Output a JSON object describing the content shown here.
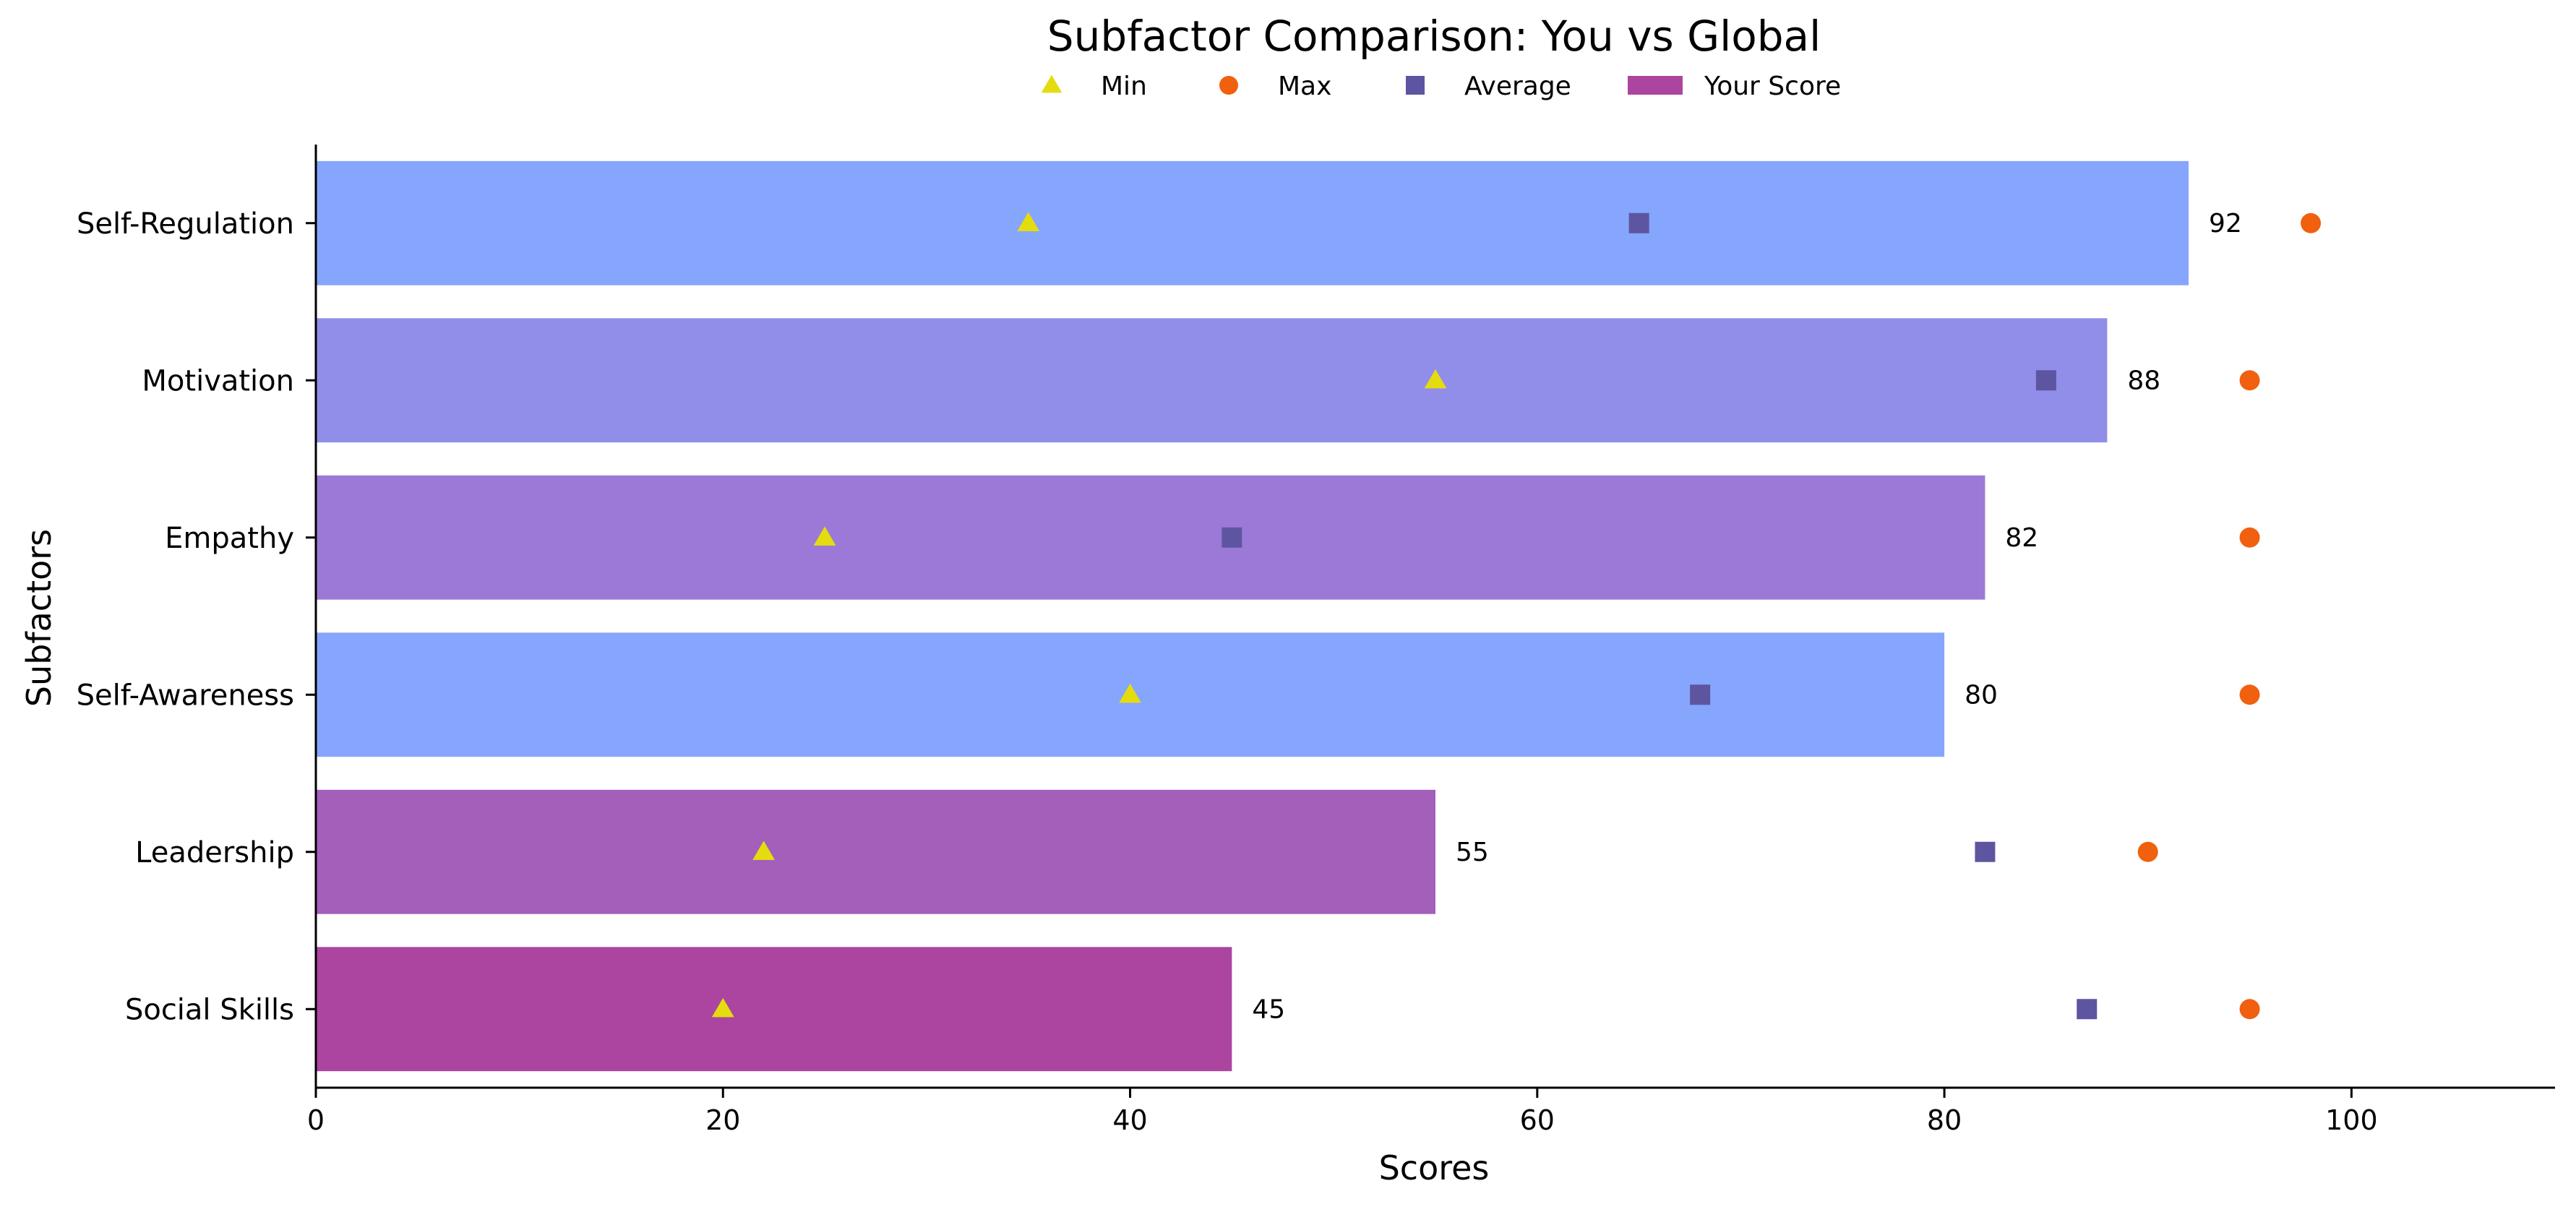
{
  "chart_data": {
    "type": "bar",
    "orientation": "horizontal",
    "title": "Subfactor Comparison: You vs Global",
    "xlabel": "Scores",
    "ylabel": "Subfactors",
    "xlim": [
      0,
      110
    ],
    "xticks": [
      0,
      20,
      40,
      60,
      80,
      100
    ],
    "categories": [
      "Self-Regulation",
      "Motivation",
      "Empathy",
      "Self-Awareness",
      "Leadership",
      "Social Skills"
    ],
    "bar_colors": [
      "#86a5fd",
      "#918eea",
      "#9c79d6",
      "#86a5fd",
      "#a35fba",
      "#ac45a0"
    ],
    "grid": false,
    "legend_position": "top-center",
    "legend": [
      {
        "label": "Min",
        "marker": "triangle",
        "color": "#e5dc0f"
      },
      {
        "label": "Max",
        "marker": "circle",
        "color": "#f0600f"
      },
      {
        "label": "Average",
        "marker": "square",
        "color": "#5e55a1"
      },
      {
        "label": "Your Score",
        "marker": "bar",
        "color": "#ac45a0"
      }
    ],
    "series": [
      {
        "name": "Your Score",
        "kind": "bar",
        "values": [
          92,
          88,
          82,
          80,
          55,
          45
        ]
      },
      {
        "name": "Min",
        "kind": "marker",
        "marker": "triangle",
        "color": "#e5dc0f",
        "values": [
          35,
          55,
          25,
          40,
          22,
          20
        ]
      },
      {
        "name": "Average",
        "kind": "marker",
        "marker": "square",
        "color": "#5e55a1",
        "values": [
          65,
          85,
          45,
          68,
          82,
          87
        ]
      },
      {
        "name": "Max",
        "kind": "marker",
        "marker": "circle",
        "color": "#f0600f",
        "values": [
          98,
          95,
          95,
          95,
          90,
          95
        ]
      }
    ]
  }
}
